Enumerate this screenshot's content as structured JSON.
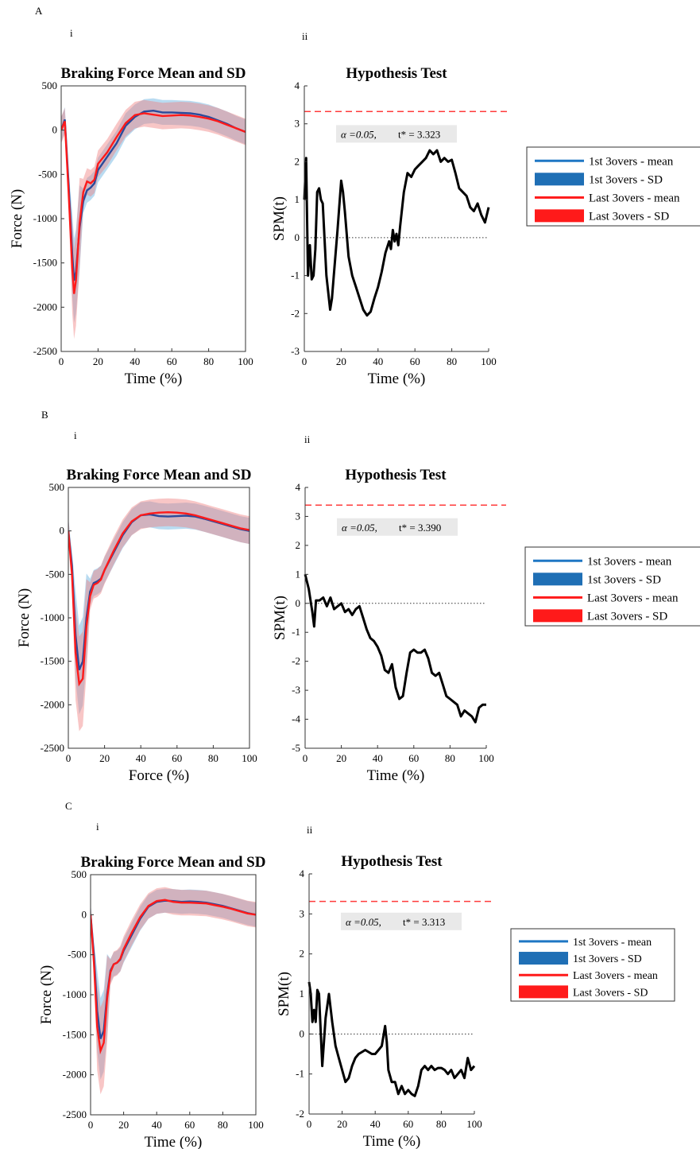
{
  "panels": [
    {
      "letter": "A",
      "sub_i": "i",
      "sub_ii": "ii",
      "legend": [
        {
          "label": "1st 3overs - mean",
          "kind": "line",
          "color": "#1f77c4"
        },
        {
          "label": "1st 3overs - SD",
          "kind": "patch",
          "color": "#1f6fb5"
        },
        {
          "label": "Last 3overs - mean",
          "kind": "line",
          "color": "#ff1a1a"
        },
        {
          "label": "Last 3overs - SD",
          "kind": "patch",
          "color": "#ff1a1a"
        }
      ]
    },
    {
      "letter": "B",
      "sub_i": "i",
      "sub_ii": "ii",
      "legend": [
        {
          "label": "1st 3overs - mean",
          "kind": "line",
          "color": "#1f77c4"
        },
        {
          "label": "1st 3overs - SD",
          "kind": "patch",
          "color": "#1f6fb5"
        },
        {
          "label": "Last 3overs - mean",
          "kind": "line",
          "color": "#ff1a1a"
        },
        {
          "label": "Last 3overs - SD",
          "kind": "patch",
          "color": "#ff1a1a"
        }
      ]
    },
    {
      "letter": "C",
      "sub_i": "i",
      "sub_ii": "ii",
      "legend": [
        {
          "label": "1st 3overs - mean",
          "kind": "line",
          "color": "#1f77c4"
        },
        {
          "label": "1st 3overs - SD",
          "kind": "patch",
          "color": "#1f6fb5"
        },
        {
          "label": "Last 3overs - mean",
          "kind": "line",
          "color": "#ff1a1a"
        },
        {
          "label": "Last 3overs - SD",
          "kind": "patch",
          "color": "#ff1a1a"
        }
      ]
    }
  ],
  "chart_data": [
    {
      "panel": "A",
      "type": "line",
      "title": "Braking Force Mean and SD",
      "xlabel": "Time (%)",
      "ylabel": "Force (N)",
      "xlim": [
        0,
        100
      ],
      "ylim": [
        -2500,
        500
      ],
      "xticks": [
        0,
        20,
        40,
        60,
        80,
        100
      ],
      "yticks": [
        500,
        0,
        -500,
        -1000,
        -1500,
        -2000,
        -2500
      ],
      "series": [
        {
          "name": "1st 3overs - mean",
          "color": "#2b4a9a",
          "x": [
            0,
            2,
            4,
            6,
            7,
            8,
            10,
            12,
            14,
            16,
            18,
            20,
            25,
            30,
            35,
            40,
            45,
            50,
            55,
            60,
            65,
            70,
            75,
            80,
            85,
            90,
            95,
            100
          ],
          "y": [
            0,
            120,
            -600,
            -1400,
            -1700,
            -1600,
            -1100,
            -800,
            -680,
            -650,
            -600,
            -450,
            -300,
            -150,
            50,
            150,
            210,
            220,
            200,
            200,
            195,
            190,
            175,
            150,
            110,
            70,
            20,
            -20
          ],
          "sd": 140
        },
        {
          "name": "Last 3overs - mean",
          "color": "#ff1a1a",
          "x": [
            0,
            2,
            4,
            6,
            7,
            8,
            10,
            12,
            14,
            16,
            18,
            20,
            25,
            30,
            35,
            40,
            45,
            50,
            55,
            60,
            65,
            70,
            75,
            80,
            85,
            90,
            95,
            100
          ],
          "y": [
            0,
            100,
            -700,
            -1550,
            -1850,
            -1700,
            -1050,
            -700,
            -580,
            -600,
            -560,
            -380,
            -250,
            -80,
            80,
            170,
            190,
            175,
            160,
            165,
            170,
            165,
            150,
            130,
            100,
            60,
            20,
            -20
          ],
          "sd": 150
        }
      ]
    },
    {
      "panel": "A",
      "type": "line",
      "title": "Hypothesis Test",
      "xlabel": "Time (%)",
      "ylabel": "SPM(t)",
      "xlim": [
        0,
        100
      ],
      "ylim": [
        -3,
        4
      ],
      "xticks": [
        0,
        20,
        40,
        60,
        80,
        100
      ],
      "yticks": [
        4,
        3,
        2,
        1,
        0,
        -1,
        -2,
        -3
      ],
      "threshold": 3.323,
      "annotation_alpha": "α  =0.05,",
      "annotation_t": "t* = 3.323",
      "series": [
        {
          "name": "SPM",
          "x": [
            0,
            1,
            2,
            3,
            4,
            5,
            6,
            7,
            8,
            9,
            10,
            12,
            14,
            15,
            16,
            18,
            20,
            21,
            22,
            24,
            26,
            28,
            30,
            32,
            34,
            36,
            38,
            40,
            42,
            44,
            46,
            47,
            48,
            49,
            50,
            51,
            52,
            54,
            56,
            58,
            60,
            62,
            64,
            66,
            68,
            70,
            72,
            74,
            76,
            78,
            80,
            82,
            84,
            86,
            88,
            90,
            92,
            94,
            96,
            98,
            100
          ],
          "y": [
            1.0,
            2.1,
            -1.0,
            -0.2,
            -1.1,
            -1.0,
            -0.3,
            1.2,
            1.3,
            1.0,
            0.9,
            -1.0,
            -1.9,
            -1.6,
            -1.0,
            0.2,
            1.5,
            1.2,
            0.7,
            -0.5,
            -1.0,
            -1.3,
            -1.6,
            -1.9,
            -2.05,
            -1.95,
            -1.6,
            -1.3,
            -0.9,
            -0.4,
            -0.1,
            -0.3,
            0.2,
            -0.1,
            0.1,
            -0.2,
            0.3,
            1.2,
            1.7,
            1.6,
            1.8,
            1.9,
            2.0,
            2.1,
            2.3,
            2.2,
            2.3,
            2.0,
            2.1,
            2.0,
            2.05,
            1.7,
            1.3,
            1.2,
            1.1,
            0.8,
            0.7,
            0.9,
            0.6,
            0.4,
            0.8
          ]
        }
      ]
    },
    {
      "panel": "B",
      "type": "line",
      "title": "Braking Force Mean and SD",
      "xlabel": "Force (%)",
      "ylabel": "Force (N)",
      "xlim": [
        0,
        100
      ],
      "ylim": [
        -2500,
        500
      ],
      "xticks": [
        0,
        20,
        40,
        60,
        80,
        100
      ],
      "yticks": [
        500,
        0,
        -500,
        -1000,
        -1500,
        -2000,
        -2500
      ],
      "series": [
        {
          "name": "1st 3overs - mean",
          "color": "#2b4a9a",
          "x": [
            0,
            2,
            4,
            6,
            8,
            10,
            12,
            14,
            16,
            18,
            20,
            25,
            30,
            35,
            40,
            45,
            50,
            55,
            60,
            65,
            70,
            75,
            80,
            85,
            90,
            95,
            100
          ],
          "y": [
            0,
            -400,
            -1200,
            -1600,
            -1500,
            -1000,
            -700,
            -600,
            -580,
            -550,
            -450,
            -250,
            -50,
            100,
            180,
            190,
            170,
            165,
            170,
            175,
            165,
            140,
            110,
            80,
            50,
            20,
            0
          ],
          "sd": 150
        },
        {
          "name": "Last 3overs - mean",
          "color": "#ff1a1a",
          "x": [
            0,
            2,
            4,
            6,
            8,
            10,
            12,
            14,
            16,
            18,
            20,
            25,
            30,
            35,
            40,
            45,
            50,
            55,
            60,
            65,
            70,
            75,
            80,
            85,
            90,
            95,
            100
          ],
          "y": [
            0,
            -500,
            -1400,
            -1760,
            -1700,
            -1100,
            -750,
            -620,
            -600,
            -560,
            -450,
            -230,
            -30,
            110,
            180,
            200,
            210,
            215,
            210,
            200,
            180,
            150,
            120,
            90,
            60,
            30,
            10
          ],
          "sd": 160
        }
      ]
    },
    {
      "panel": "B",
      "type": "line",
      "title": "Hypothesis Test",
      "xlabel": "Time (%)",
      "ylabel": "SPM(t)",
      "xlim": [
        0,
        100
      ],
      "ylim": [
        -5,
        4
      ],
      "xticks": [
        0,
        20,
        40,
        60,
        80,
        100
      ],
      "yticks": [
        4,
        3,
        2,
        1,
        0,
        -1,
        -2,
        -3,
        -4,
        -5
      ],
      "threshold": 3.39,
      "annotation_alpha": "α  =0.05,",
      "annotation_t": "t* = 3.390",
      "series": [
        {
          "name": "SPM",
          "x": [
            0,
            2,
            4,
            5,
            6,
            8,
            10,
            12,
            14,
            16,
            18,
            20,
            22,
            24,
            26,
            28,
            30,
            32,
            34,
            36,
            38,
            40,
            42,
            44,
            46,
            48,
            50,
            52,
            54,
            56,
            58,
            60,
            62,
            64,
            66,
            68,
            70,
            72,
            74,
            76,
            78,
            80,
            82,
            84,
            86,
            88,
            90,
            92,
            94,
            96,
            98,
            100
          ],
          "y": [
            1.0,
            0.5,
            -0.3,
            -0.8,
            0.1,
            0.1,
            0.2,
            -0.1,
            0.2,
            -0.2,
            -0.1,
            0.0,
            -0.3,
            -0.2,
            -0.4,
            -0.2,
            -0.1,
            -0.5,
            -0.9,
            -1.2,
            -1.3,
            -1.5,
            -1.8,
            -2.3,
            -2.4,
            -2.1,
            -2.9,
            -3.3,
            -3.2,
            -2.4,
            -1.7,
            -1.6,
            -1.7,
            -1.7,
            -1.6,
            -1.9,
            -2.4,
            -2.5,
            -2.4,
            -2.8,
            -3.2,
            -3.3,
            -3.4,
            -3.5,
            -3.9,
            -3.7,
            -3.8,
            -3.9,
            -4.1,
            -3.6,
            -3.5,
            -3.5
          ]
        }
      ]
    },
    {
      "panel": "C",
      "type": "line",
      "title": "Braking Force Mean and SD",
      "xlabel": "Time (%)",
      "ylabel": "Force (N)",
      "xlim": [
        0,
        100
      ],
      "ylim": [
        -2500,
        500
      ],
      "xticks": [
        0,
        20,
        40,
        60,
        80,
        100
      ],
      "yticks": [
        500,
        0,
        -500,
        -1000,
        -1500,
        -2000,
        -2500
      ],
      "series": [
        {
          "name": "1st 3overs - mean",
          "color": "#2b4a9a",
          "x": [
            0,
            2,
            4,
            6,
            8,
            10,
            12,
            14,
            16,
            18,
            20,
            25,
            30,
            35,
            40,
            45,
            50,
            55,
            60,
            65,
            70,
            75,
            80,
            85,
            90,
            95,
            100
          ],
          "y": [
            0,
            -500,
            -1200,
            -1550,
            -1450,
            -1000,
            -700,
            -620,
            -600,
            -560,
            -450,
            -250,
            -50,
            100,
            160,
            175,
            170,
            160,
            165,
            160,
            150,
            130,
            110,
            80,
            50,
            20,
            0
          ],
          "sd": 150
        },
        {
          "name": "Last 3overs - mean",
          "color": "#ff1a1a",
          "x": [
            0,
            2,
            4,
            6,
            8,
            10,
            12,
            14,
            16,
            18,
            20,
            25,
            30,
            35,
            40,
            45,
            50,
            55,
            60,
            65,
            70,
            75,
            80,
            85,
            90,
            95,
            100
          ],
          "y": [
            0,
            -600,
            -1400,
            -1700,
            -1600,
            -1050,
            -720,
            -620,
            -600,
            -550,
            -430,
            -220,
            -30,
            110,
            170,
            185,
            160,
            150,
            150,
            145,
            140,
            120,
            100,
            75,
            45,
            15,
            0
          ],
          "sd": 160
        }
      ]
    },
    {
      "panel": "C",
      "type": "line",
      "title": "Hypothesis Test",
      "xlabel": "Time (%)",
      "ylabel": "SPM(t)",
      "xlim": [
        0,
        100
      ],
      "ylim": [
        -2,
        4
      ],
      "xticks": [
        0,
        20,
        40,
        60,
        80,
        100
      ],
      "yticks": [
        4,
        3,
        2,
        1,
        0,
        -1,
        -2
      ],
      "threshold": 3.313,
      "annotation_alpha": "α  =0.05,",
      "annotation_t": "t* = 3.313",
      "series": [
        {
          "name": "SPM",
          "x": [
            0,
            1,
            2,
            3,
            4,
            5,
            6,
            8,
            10,
            12,
            14,
            16,
            18,
            20,
            22,
            24,
            26,
            28,
            30,
            32,
            34,
            36,
            38,
            40,
            42,
            44,
            46,
            47,
            48,
            50,
            52,
            54,
            56,
            58,
            60,
            62,
            64,
            66,
            68,
            70,
            72,
            74,
            76,
            78,
            80,
            82,
            84,
            86,
            88,
            90,
            92,
            94,
            96,
            98,
            100
          ],
          "y": [
            1.3,
            1.0,
            0.3,
            0.6,
            0.3,
            1.1,
            1.0,
            -0.8,
            0.4,
            1.0,
            0.3,
            -0.3,
            -0.6,
            -0.9,
            -1.2,
            -1.1,
            -0.8,
            -0.6,
            -0.5,
            -0.45,
            -0.4,
            -0.45,
            -0.5,
            -0.5,
            -0.4,
            -0.3,
            0.2,
            -0.2,
            -0.9,
            -1.2,
            -1.2,
            -1.5,
            -1.3,
            -1.5,
            -1.4,
            -1.5,
            -1.55,
            -1.3,
            -0.9,
            -0.8,
            -0.9,
            -0.8,
            -0.9,
            -0.85,
            -0.85,
            -0.9,
            -1.0,
            -0.9,
            -1.1,
            -1.0,
            -0.9,
            -1.1,
            -0.6,
            -0.9,
            -0.8
          ]
        }
      ]
    }
  ]
}
